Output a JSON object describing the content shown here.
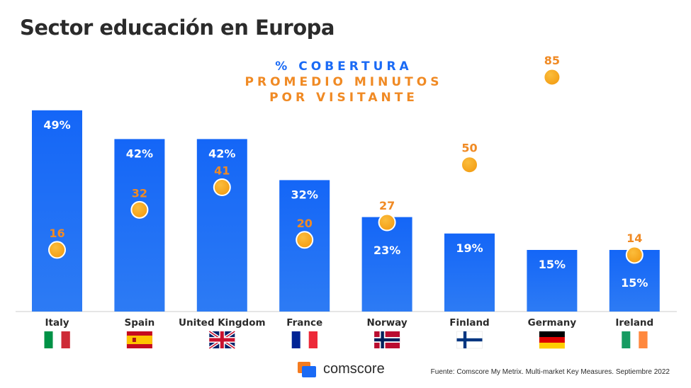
{
  "title": "Sector educación en Europa",
  "legend": {
    "coverage": "% COBERTURA",
    "minutes_line1": "PROMEDIO MINUTOS",
    "minutes_line2": "POR VISITANTE"
  },
  "colors": {
    "bar": "#1a6af5",
    "dot": "#f5a623",
    "dot_label": "#f08a24",
    "text": "#2b2b2b"
  },
  "chart_data": {
    "type": "bar",
    "categories": [
      "Italy",
      "Spain",
      "United Kingdom",
      "France",
      "Norway",
      "Finland",
      "Germany",
      "Ireland"
    ],
    "series": [
      {
        "values": [
          49,
          42,
          42,
          32,
          23,
          19,
          15,
          15
        ],
        "labels": [
          "49%",
          "42%",
          "42%",
          "32%",
          "23%",
          "19%",
          "15%",
          "15%"
        ]
      },
      {
        "values": [
          16,
          32,
          41,
          20,
          27,
          50,
          85,
          14
        ],
        "labels": [
          "16",
          "32",
          "41",
          "20",
          "27",
          "50",
          "85",
          "14"
        ]
      }
    ],
    "flags": [
      "italy-flag",
      "spain-flag",
      "uk-flag",
      "france-flag",
      "norway-flag",
      "finland-flag",
      "germany-flag",
      "ireland-flag"
    ]
  },
  "footer": {
    "logo_text": "comscore",
    "source": "Fuente: Comscore My Metrix. Multi-market Key Measures. Septiembre 2022"
  }
}
